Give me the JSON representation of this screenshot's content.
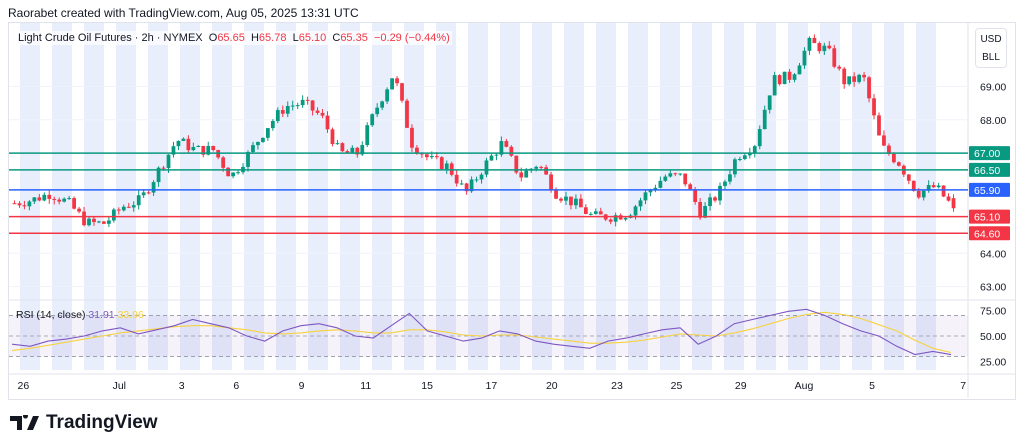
{
  "credit": "Raorabet created with TradingView.com, Aug 05, 2025 13:31 UTC",
  "legend": {
    "symbol": "Light Crude Oil Futures · 2h · NYMEX",
    "o_label": "O",
    "o": "65.65",
    "h_label": "H",
    "h": "65.78",
    "l_label": "L",
    "l": "65.10",
    "c_label": "C",
    "c": "65.35",
    "change": "−0.29 (−0.44%)"
  },
  "currency": {
    "line1": "USD",
    "line2": "BLL"
  },
  "rsi_legend": {
    "label": "RSI (14, close)",
    "rsi": "31.91",
    "ma": "33.96"
  },
  "logo": "TradingView",
  "colors": {
    "up": "#089981",
    "down": "#f23645",
    "blue": "#2962ff",
    "rsi": "#7e57c2",
    "rsi_ma": "#f7d23e",
    "stripe": "#e8eefc"
  },
  "chart_data": {
    "type": "candlestick",
    "title": "Light Crude Oil Futures · 2h · NYMEX",
    "ylim": [
      62.6,
      70.9
    ],
    "y_ticks": [
      "63.00",
      "64.00",
      "68.00",
      "69.00"
    ],
    "x_ticks": [
      "26",
      "Jul",
      "3",
      "6",
      "9",
      "11",
      "15",
      "17",
      "20",
      "23",
      "25",
      "29",
      "Aug",
      "5",
      "7"
    ],
    "x_tick_pos": [
      0.015,
      0.115,
      0.18,
      0.237,
      0.305,
      0.372,
      0.436,
      0.503,
      0.566,
      0.634,
      0.696,
      0.763,
      0.829,
      0.9,
      0.995
    ],
    "levels": [
      {
        "value": 67.0,
        "label": "67.00",
        "color": "#089981"
      },
      {
        "value": 66.5,
        "label": "66.50",
        "color": "#089981"
      },
      {
        "value": 65.9,
        "label": "65.90",
        "color": "#2962ff"
      },
      {
        "value": 65.1,
        "label": "65.10",
        "color": "#f23645"
      },
      {
        "value": 64.6,
        "label": "64.60",
        "color": "#f23645"
      }
    ],
    "close_path": [
      65.5,
      65.6,
      65.8,
      65.5,
      64.9,
      64.9,
      65.4,
      65.6,
      66.5,
      67.4,
      67.1,
      67.1,
      66.3,
      67.0,
      67.8,
      68.4,
      68.5,
      68.1,
      67.0,
      67.0,
      68.3,
      69.4,
      67.3,
      66.8,
      66.6,
      65.8,
      66.6,
      67.3,
      66.3,
      66.7,
      65.8,
      65.5,
      65.1,
      65.1,
      65.2,
      65.8,
      66.3,
      66.3,
      65.2,
      65.8,
      66.9,
      67.3,
      69.2,
      69.3,
      70.3,
      70.1,
      69.1,
      69.3,
      67.2,
      66.7,
      65.8,
      66.0,
      65.35
    ],
    "rsi": {
      "ylim": [
        15,
        85
      ],
      "ticks": [
        "75.00",
        "50.00",
        "25.00"
      ],
      "bands": [
        30,
        70
      ],
      "values": [
        42,
        40,
        45,
        47,
        50,
        55,
        58,
        52,
        56,
        60,
        66,
        62,
        58,
        50,
        45,
        55,
        60,
        62,
        58,
        50,
        48,
        60,
        72,
        55,
        50,
        45,
        48,
        55,
        52,
        45,
        42,
        40,
        38,
        45,
        48,
        52,
        56,
        58,
        42,
        50,
        62,
        66,
        70,
        74,
        76,
        70,
        62,
        55,
        50,
        40,
        32,
        35,
        31.91
      ],
      "ma": [
        36,
        38,
        41,
        44,
        47,
        50,
        53,
        55,
        57,
        59,
        60,
        60,
        58,
        56,
        53,
        52,
        53,
        55,
        56,
        55,
        53,
        53,
        56,
        56,
        54,
        51,
        50,
        51,
        51,
        49,
        47,
        45,
        43,
        43,
        44,
        46,
        49,
        52,
        51,
        50,
        53,
        57,
        62,
        67,
        71,
        73,
        71,
        67,
        61,
        55,
        46,
        38,
        33.96
      ]
    }
  }
}
